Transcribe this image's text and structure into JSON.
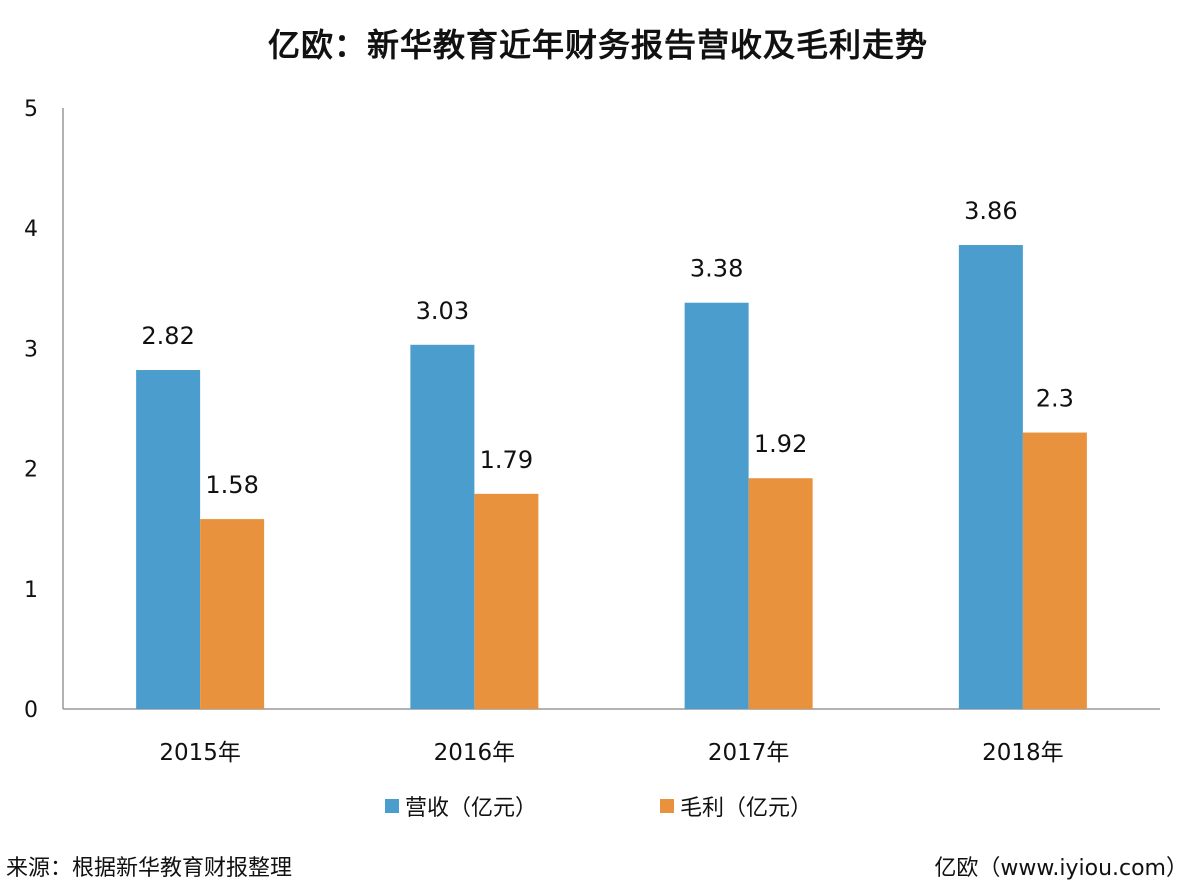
{
  "title": "亿欧：新华教育近年财务报告营收及毛利走势",
  "source": "来源：根据新华教育财报整理",
  "watermark": "亿欧（www.iyiou.com）",
  "colors": {
    "revenue": "#4a9dcc",
    "gross_profit": "#e8923e",
    "axis": "#999999"
  },
  "chart_data": {
    "type": "bar",
    "title": "亿欧：新华教育近年财务报告营收及毛利走势",
    "categories": [
      "2015年",
      "2016年",
      "2017年",
      "2018年"
    ],
    "series": [
      {
        "name": "营收（亿元）",
        "values": [
          2.82,
          3.03,
          3.38,
          3.86
        ],
        "labels": [
          "2.82",
          "3.03",
          "3.38",
          "3.86"
        ]
      },
      {
        "name": "毛利（亿元）",
        "values": [
          1.58,
          1.79,
          1.92,
          2.3
        ],
        "labels": [
          "1.58",
          "1.79",
          "1.92",
          "2.3"
        ]
      }
    ],
    "ylim": [
      0,
      5
    ],
    "yticks": [
      "0",
      "1",
      "2",
      "3",
      "4",
      "5"
    ],
    "grid": false,
    "legend": "bottom",
    "xlabel": "",
    "ylabel": ""
  }
}
